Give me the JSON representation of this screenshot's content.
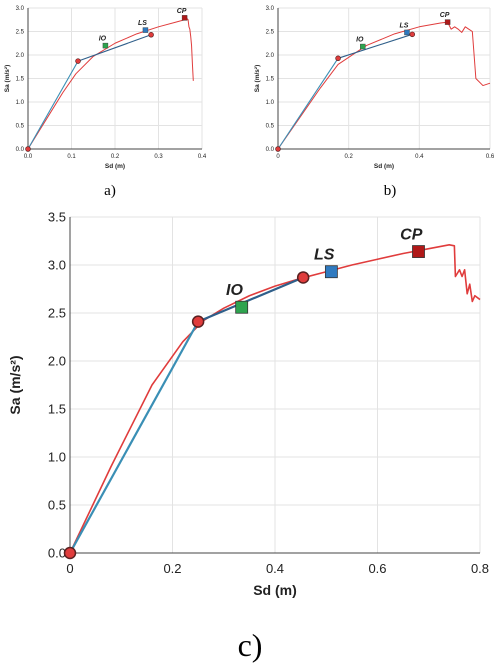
{
  "colors": {
    "capacity": "#e03c3c",
    "bilinear": "#2f5f8a",
    "bilinear_initial": "#3a8fb5",
    "point_edge": "#5a2020",
    "io": "#2ea44f",
    "ls": "#2f7ac0",
    "cp": "#b01818",
    "grid": "#e3e3e3"
  },
  "chart_data": [
    {
      "type": "line",
      "panel": "a",
      "caption": "a)",
      "xlabel": "Sd (m)",
      "ylabel": "Sa (m/s²)",
      "xlim": [
        0,
        0.4
      ],
      "ylim": [
        0,
        3.0
      ],
      "xticks": [
        0,
        0.1,
        0.2,
        0.3,
        0.4
      ],
      "xtick_labels": [
        "0.0",
        "0.1",
        "0.2",
        "0.3",
        "0.4"
      ],
      "yticks": [
        0,
        0.5,
        1.0,
        1.5,
        2.0,
        2.5,
        3.0
      ],
      "ytick_labels": [
        "0.0",
        "0.5",
        "1.0",
        "1.5",
        "2.0",
        "2.5",
        "3.0"
      ],
      "grid": true,
      "series": [
        {
          "role": "capacity",
          "x": [
            0,
            0.04,
            0.08,
            0.11,
            0.15,
            0.2,
            0.25,
            0.3,
            0.34,
            0.36,
            0.365,
            0.368,
            0.37,
            0.372,
            0.374,
            0.376,
            0.378,
            0.38
          ],
          "y": [
            0,
            0.6,
            1.2,
            1.6,
            1.97,
            2.25,
            2.45,
            2.6,
            2.7,
            2.75,
            2.78,
            2.75,
            2.6,
            2.55,
            2.4,
            2.2,
            1.8,
            1.45
          ]
        },
        {
          "role": "bilinear",
          "x": [
            0,
            0.115,
            0.283
          ],
          "y": [
            0,
            1.87,
            2.43
          ]
        }
      ],
      "points": [
        {
          "role": "origin",
          "x": 0,
          "y": 0
        },
        {
          "role": "yield",
          "x": 0.115,
          "y": 1.87
        },
        {
          "role": "ultimate",
          "x": 0.283,
          "y": 2.43
        }
      ],
      "performance_points": [
        {
          "label": "IO",
          "x": 0.178,
          "y": 2.2,
          "role": "io"
        },
        {
          "label": "LS",
          "x": 0.27,
          "y": 2.53,
          "role": "ls"
        },
        {
          "label": "CP",
          "x": 0.36,
          "y": 2.79,
          "role": "cp"
        }
      ]
    },
    {
      "type": "line",
      "panel": "b",
      "caption": "b)",
      "xlabel": "Sd (m)",
      "ylabel": "Sa (m/s²)",
      "xlim": [
        0,
        0.6
      ],
      "ylim": [
        0,
        3.0
      ],
      "xticks": [
        0,
        0.2,
        0.4,
        0.6
      ],
      "xtick_labels": [
        "0",
        "0.2",
        "0.4",
        "0.6"
      ],
      "yticks": [
        0,
        0.5,
        1.0,
        1.5,
        2.0,
        2.5,
        3.0
      ],
      "ytick_labels": [
        "0.0",
        "0.5",
        "1.0",
        "1.5",
        "2.0",
        "2.5",
        "3.0"
      ],
      "grid": true,
      "series": [
        {
          "role": "capacity",
          "x": [
            0,
            0.06,
            0.12,
            0.17,
            0.25,
            0.33,
            0.4,
            0.46,
            0.48,
            0.49,
            0.5,
            0.51,
            0.52,
            0.53,
            0.54,
            0.55,
            0.56,
            0.58,
            0.6
          ],
          "y": [
            0,
            0.65,
            1.3,
            1.8,
            2.2,
            2.45,
            2.6,
            2.68,
            2.7,
            2.55,
            2.6,
            2.55,
            2.48,
            2.6,
            2.55,
            2.5,
            1.5,
            1.35,
            1.4
          ]
        },
        {
          "role": "bilinear",
          "x": [
            0,
            0.17,
            0.38
          ],
          "y": [
            0,
            1.93,
            2.44
          ]
        }
      ],
      "points": [
        {
          "role": "origin",
          "x": 0,
          "y": 0
        },
        {
          "role": "yield",
          "x": 0.17,
          "y": 1.93
        },
        {
          "role": "ultimate",
          "x": 0.38,
          "y": 2.44
        }
      ],
      "performance_points": [
        {
          "label": "IO",
          "x": 0.24,
          "y": 2.18,
          "role": "io"
        },
        {
          "label": "LS",
          "x": 0.365,
          "y": 2.48,
          "role": "ls"
        },
        {
          "label": "CP",
          "x": 0.48,
          "y": 2.7,
          "role": "cp"
        }
      ]
    },
    {
      "type": "line",
      "panel": "c",
      "caption": "c)",
      "xlabel": "Sd (m)",
      "ylabel": "Sa (m/s²)",
      "xlim": [
        0,
        0.8
      ],
      "ylim": [
        0,
        3.5
      ],
      "xticks": [
        0,
        0.2,
        0.4,
        0.6,
        0.8
      ],
      "xtick_labels": [
        "0",
        "0.2",
        "0.4",
        "0.6",
        "0.8"
      ],
      "yticks": [
        0,
        0.5,
        1.0,
        1.5,
        2.0,
        2.5,
        3.0,
        3.5
      ],
      "ytick_labels": [
        "0.0",
        "0.5",
        "1.0",
        "1.5",
        "2.0",
        "2.5",
        "3.0",
        "3.5"
      ],
      "grid": true,
      "series": [
        {
          "role": "capacity",
          "x": [
            0,
            0.08,
            0.16,
            0.22,
            0.26,
            0.3,
            0.35,
            0.4,
            0.45,
            0.5,
            0.55,
            0.6,
            0.65,
            0.7,
            0.74,
            0.75,
            0.752,
            0.76,
            0.765,
            0.77,
            0.775,
            0.78,
            0.785,
            0.79,
            0.8
          ],
          "y": [
            0,
            0.9,
            1.75,
            2.2,
            2.42,
            2.55,
            2.68,
            2.78,
            2.86,
            2.93,
            3.0,
            3.06,
            3.12,
            3.17,
            3.21,
            3.2,
            2.88,
            2.95,
            2.88,
            2.95,
            2.7,
            2.8,
            2.62,
            2.68,
            2.64
          ]
        },
        {
          "role": "bilinear",
          "x": [
            0,
            0.25,
            0.455
          ],
          "y": [
            0,
            2.41,
            2.87
          ]
        }
      ],
      "points": [
        {
          "role": "origin",
          "x": 0,
          "y": 0
        },
        {
          "role": "yield",
          "x": 0.25,
          "y": 2.41
        },
        {
          "role": "ultimate",
          "x": 0.455,
          "y": 2.87
        }
      ],
      "performance_points": [
        {
          "label": "IO",
          "x": 0.335,
          "y": 2.56,
          "role": "io"
        },
        {
          "label": "LS",
          "x": 0.51,
          "y": 2.93,
          "role": "ls"
        },
        {
          "label": "CP",
          "x": 0.68,
          "y": 3.14,
          "role": "cp"
        }
      ]
    }
  ]
}
